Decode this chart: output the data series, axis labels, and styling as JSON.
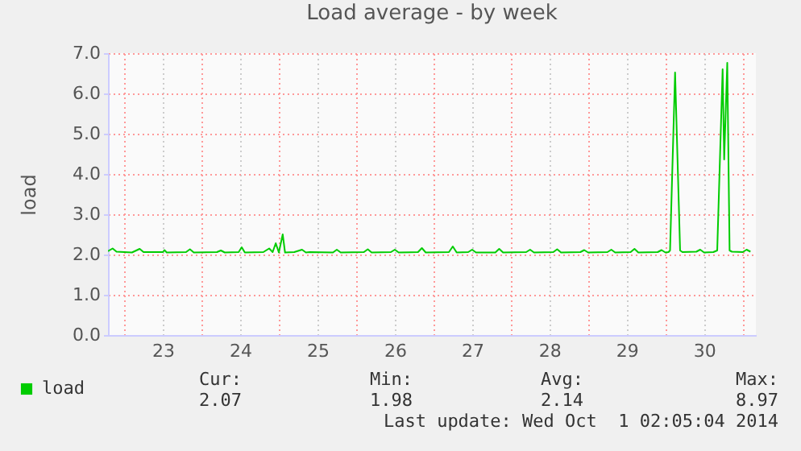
{
  "chart_data": {
    "type": "line",
    "title": "Load average - by week",
    "ylabel": "load",
    "x": [
      22.79,
      22.85,
      22.9,
      23.0,
      23.1,
      23.2,
      23.25,
      23.5,
      23.52,
      23.55,
      23.8,
      23.85,
      23.9,
      24.2,
      24.25,
      24.3,
      24.48,
      24.52,
      24.56,
      24.8,
      24.875,
      24.92,
      24.96,
      25.0,
      25.05,
      25.08,
      25.2,
      25.3,
      25.35,
      25.4,
      25.7,
      25.75,
      25.8,
      26.1,
      26.15,
      26.2,
      26.45,
      26.5,
      26.55,
      26.8,
      26.85,
      26.9,
      27.2,
      27.25,
      27.3,
      27.45,
      27.5,
      27.55,
      27.8,
      27.85,
      27.9,
      28.2,
      28.25,
      28.3,
      28.55,
      28.6,
      28.65,
      28.9,
      28.95,
      29.0,
      29.25,
      29.3,
      29.35,
      29.55,
      29.6,
      29.65,
      29.9,
      29.95,
      30.0,
      30.04,
      30.06,
      30.125,
      30.19,
      30.22,
      30.4,
      30.45,
      30.5,
      30.62,
      30.67,
      30.74,
      30.76,
      30.8,
      30.83,
      30.86,
      31.0,
      31.05,
      31.1
    ],
    "series": [
      {
        "name": "load",
        "color": "#00cc00",
        "values": [
          2.08,
          2.15,
          2.07,
          2.06,
          2.05,
          2.14,
          2.06,
          2.06,
          2.11,
          2.05,
          2.06,
          2.13,
          2.05,
          2.06,
          2.1,
          2.05,
          2.06,
          2.18,
          2.05,
          2.06,
          2.15,
          2.06,
          2.28,
          2.05,
          2.5,
          2.05,
          2.06,
          2.12,
          2.05,
          2.06,
          2.05,
          2.12,
          2.05,
          2.06,
          2.13,
          2.05,
          2.06,
          2.12,
          2.05,
          2.06,
          2.16,
          2.05,
          2.06,
          2.2,
          2.05,
          2.06,
          2.12,
          2.05,
          2.05,
          2.14,
          2.05,
          2.06,
          2.12,
          2.05,
          2.06,
          2.13,
          2.05,
          2.06,
          2.11,
          2.05,
          2.06,
          2.12,
          2.05,
          2.06,
          2.14,
          2.05,
          2.06,
          2.11,
          2.05,
          2.06,
          2.1,
          6.52,
          2.1,
          2.06,
          2.07,
          2.12,
          2.05,
          2.06,
          2.1,
          6.6,
          4.36,
          6.76,
          2.1,
          2.07,
          2.06,
          2.12,
          2.07
        ]
      }
    ],
    "xlim": [
      22.79,
      31.17
    ],
    "xticks": [
      {
        "value": 23,
        "label": null
      },
      {
        "value": 23.5,
        "label": "23"
      },
      {
        "value": 24,
        "label": null
      },
      {
        "value": 24.5,
        "label": "24"
      },
      {
        "value": 25,
        "label": null
      },
      {
        "value": 25.5,
        "label": "25"
      },
      {
        "value": 26,
        "label": null
      },
      {
        "value": 26.5,
        "label": "26"
      },
      {
        "value": 27,
        "label": null
      },
      {
        "value": 27.5,
        "label": "27"
      },
      {
        "value": 28,
        "label": null
      },
      {
        "value": 28.5,
        "label": "28"
      },
      {
        "value": 29,
        "label": null
      },
      {
        "value": 29.5,
        "label": "29"
      },
      {
        "value": 30,
        "label": null
      },
      {
        "value": 30.5,
        "label": "30"
      },
      {
        "value": 31,
        "label": null
      }
    ],
    "ylim": [
      0,
      7
    ],
    "yticks": [
      {
        "value": 0,
        "label": "0.0"
      },
      {
        "value": 1,
        "label": "1.0"
      },
      {
        "value": 2,
        "label": "2.0"
      },
      {
        "value": 3,
        "label": "3.0"
      },
      {
        "value": 4,
        "label": "4.0"
      },
      {
        "value": 5,
        "label": "5.0"
      },
      {
        "value": 6,
        "label": "6.0"
      },
      {
        "value": 7,
        "label": "7.0"
      }
    ],
    "grid": true,
    "legend": "bottom left",
    "marker": "none",
    "line_style": "solid",
    "annotations": [
      "Cur:",
      "Min:",
      "Avg:",
      "Max:",
      "2.07",
      "1.98",
      "2.14",
      "8.97",
      "Last update: Wed Oct  1 02:05:04 2014"
    ]
  }
}
